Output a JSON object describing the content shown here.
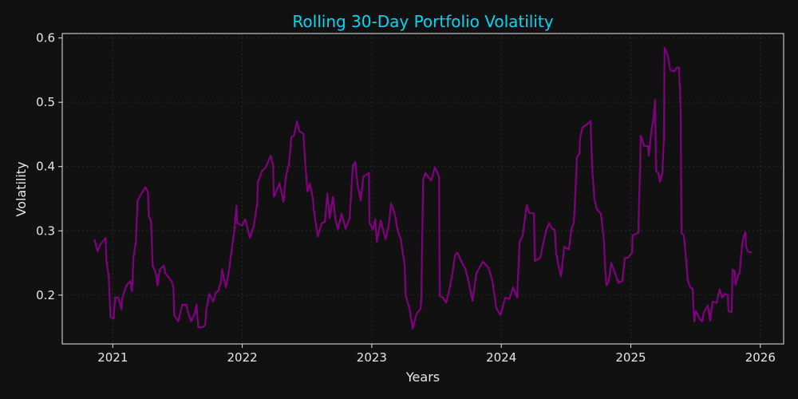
{
  "chart_data": {
    "type": "line",
    "title": "Rolling 30-Day Portfolio Volatility",
    "xlabel": "Years",
    "ylabel": "Volatility",
    "xlim": [
      2020.61,
      2026.18
    ],
    "ylim": [
      0.124,
      0.607
    ],
    "xticks": [
      2021,
      2022,
      2023,
      2024,
      2025,
      2026
    ],
    "xtick_labels": [
      "2021",
      "2022",
      "2023",
      "2024",
      "2025",
      "2026"
    ],
    "yticks": [
      0.2,
      0.3,
      0.4,
      0.5,
      0.6
    ],
    "ytick_labels": [
      "0.2",
      "0.3",
      "0.4",
      "0.5",
      "0.6"
    ],
    "grid": true,
    "colors": {
      "background": "#111111",
      "line": "#800080",
      "title": "#00d8f0",
      "text": "#e6e6e6",
      "axes": "#e6e6e6"
    },
    "series": [
      {
        "x": [
          2020.858,
          2020.883,
          2020.901,
          2020.945,
          2020.951,
          2020.969,
          2020.982,
          2021.006,
          2021.018,
          2021.043,
          2021.068,
          2021.074,
          2021.105,
          2021.135,
          2021.148,
          2021.16,
          2021.179,
          2021.191,
          2021.222,
          2021.252,
          2021.271,
          2021.277,
          2021.296,
          2021.308,
          2021.333,
          2021.345,
          2021.363,
          2021.394,
          2021.406,
          2021.456,
          2021.468,
          2021.474,
          2021.505,
          2021.536,
          2021.567,
          2021.579,
          2021.603,
          2021.628,
          2021.647,
          2021.659,
          2021.69,
          2021.714,
          2021.72,
          2021.745,
          2021.776,
          2021.794,
          2021.813,
          2021.837,
          2021.844,
          2021.874,
          2021.899,
          2021.918,
          2021.936,
          2021.955,
          2021.961,
          2021.998,
          2022.022,
          2022.059,
          2022.09,
          2022.115,
          2022.121,
          2022.152,
          2022.182,
          2022.219,
          2022.238,
          2022.244,
          2022.287,
          2022.318,
          2022.336,
          2022.361,
          2022.379,
          2022.398,
          2022.422,
          2022.441,
          2022.472,
          2022.484,
          2022.503,
          2022.521,
          2022.546,
          2022.552,
          2022.583,
          2022.613,
          2022.638,
          2022.657,
          2022.675,
          2022.7,
          2022.718,
          2022.737,
          2022.767,
          2022.798,
          2022.829,
          2022.854,
          2022.872,
          2022.891,
          2022.915,
          2022.934,
          2022.977,
          2022.983,
          2023.008,
          2023.026,
          2023.038,
          2023.069,
          2023.106,
          2023.131,
          2023.149,
          2023.18,
          2023.198,
          2023.223,
          2023.254,
          2023.26,
          2023.291,
          2023.315,
          2023.346,
          2023.377,
          2023.383,
          2023.396,
          2023.414,
          2023.457,
          2023.488,
          2023.519,
          2023.525,
          2023.549,
          2023.574,
          2023.599,
          2023.623,
          2023.642,
          2023.66,
          2023.697,
          2023.722,
          2023.746,
          2023.777,
          2023.808,
          2023.857,
          2023.9,
          2023.931,
          2023.962,
          2023.993,
          2024.03,
          2024.061,
          2024.091,
          2024.122,
          2024.141,
          2024.165,
          2024.196,
          2024.215,
          2024.252,
          2024.258,
          2024.301,
          2024.319,
          2024.35,
          2024.369,
          2024.393,
          2024.412,
          2024.424,
          2024.442,
          2024.461,
          2024.485,
          2024.522,
          2024.541,
          2024.559,
          2024.566,
          2024.584,
          2024.602,
          2024.609,
          2024.627,
          2024.67,
          2024.689,
          2024.701,
          2024.719,
          2024.738,
          2024.769,
          2024.793,
          2024.8,
          2024.812,
          2024.83,
          2024.849,
          2024.873,
          2024.904,
          2024.935,
          2024.953,
          2024.978,
          2025.009,
          2025.015,
          2025.058,
          2025.077,
          2025.101,
          2025.132,
          2025.138,
          2025.157,
          2025.175,
          2025.188,
          2025.194,
          2025.212,
          2025.225,
          2025.243,
          2025.255,
          2025.261,
          2025.286,
          2025.304,
          2025.335,
          2025.354,
          2025.372,
          2025.385,
          2025.391,
          2025.409,
          2025.422,
          2025.44,
          2025.459,
          2025.477,
          2025.489,
          2025.502,
          2025.532,
          2025.551,
          2025.563,
          2025.594,
          2025.612,
          2025.631,
          2025.662,
          2025.686,
          2025.705,
          2025.723,
          2025.748,
          2025.754,
          2025.779,
          2025.785,
          2025.803,
          2025.809,
          2025.828,
          2025.84,
          2025.859,
          2025.871,
          2025.883,
          2025.889,
          2025.902,
          2025.933
        ],
        "y": [
          0.287,
          0.268,
          0.278,
          0.289,
          0.253,
          0.229,
          0.166,
          0.163,
          0.196,
          0.196,
          0.178,
          0.196,
          0.215,
          0.222,
          0.206,
          0.26,
          0.283,
          0.347,
          0.358,
          0.368,
          0.361,
          0.324,
          0.314,
          0.246,
          0.234,
          0.215,
          0.24,
          0.246,
          0.234,
          0.221,
          0.212,
          0.169,
          0.159,
          0.185,
          0.185,
          0.175,
          0.159,
          0.169,
          0.185,
          0.15,
          0.15,
          0.153,
          0.175,
          0.202,
          0.19,
          0.204,
          0.206,
          0.222,
          0.24,
          0.212,
          0.241,
          0.271,
          0.296,
          0.339,
          0.312,
          0.308,
          0.318,
          0.289,
          0.309,
          0.343,
          0.376,
          0.393,
          0.399,
          0.417,
          0.402,
          0.353,
          0.374,
          0.345,
          0.384,
          0.405,
          0.446,
          0.448,
          0.47,
          0.455,
          0.451,
          0.411,
          0.361,
          0.374,
          0.349,
          0.333,
          0.291,
          0.312,
          0.314,
          0.358,
          0.32,
          0.353,
          0.32,
          0.302,
          0.327,
          0.303,
          0.32,
          0.402,
          0.407,
          0.37,
          0.347,
          0.384,
          0.39,
          0.312,
          0.302,
          0.318,
          0.283,
          0.316,
          0.287,
          0.309,
          0.343,
          0.324,
          0.302,
          0.287,
          0.246,
          0.2,
          0.179,
          0.148,
          0.171,
          0.179,
          0.202,
          0.38,
          0.39,
          0.378,
          0.399,
          0.384,
          0.198,
          0.196,
          0.188,
          0.209,
          0.234,
          0.262,
          0.266,
          0.25,
          0.241,
          0.222,
          0.191,
          0.234,
          0.252,
          0.243,
          0.222,
          0.179,
          0.169,
          0.196,
          0.194,
          0.212,
          0.196,
          0.283,
          0.293,
          0.34,
          0.328,
          0.327,
          0.253,
          0.258,
          0.277,
          0.303,
          0.312,
          0.303,
          0.302,
          0.265,
          0.246,
          0.229,
          0.275,
          0.271,
          0.303,
          0.312,
          0.334,
          0.415,
          0.42,
          0.445,
          0.461,
          0.467,
          0.471,
          0.399,
          0.349,
          0.333,
          0.327,
          0.283,
          0.246,
          0.215,
          0.222,
          0.25,
          0.237,
          0.219,
          0.222,
          0.258,
          0.258,
          0.266,
          0.293,
          0.297,
          0.448,
          0.432,
          0.432,
          0.417,
          0.452,
          0.477,
          0.504,
          0.393,
          0.39,
          0.376,
          0.389,
          0.442,
          0.585,
          0.573,
          0.55,
          0.548,
          0.554,
          0.554,
          0.486,
          0.297,
          0.293,
          0.266,
          0.222,
          0.212,
          0.21,
          0.159,
          0.175,
          0.163,
          0.159,
          0.173,
          0.184,
          0.16,
          0.19,
          0.188,
          0.209,
          0.196,
          0.202,
          0.2,
          0.175,
          0.173,
          0.24,
          0.237,
          0.216,
          0.231,
          0.234,
          0.278,
          0.291,
          0.298,
          0.277,
          0.268,
          0.266
        ]
      }
    ]
  }
}
